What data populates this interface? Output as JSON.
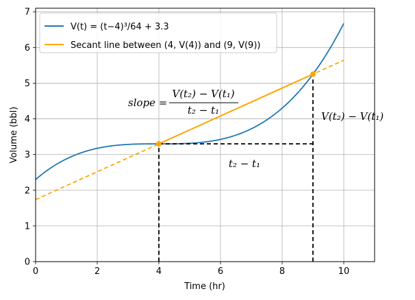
{
  "chart_data": {
    "type": "line",
    "xlabel": "Time (hr)",
    "ylabel": "Volume (bbl)",
    "xlim": [
      0,
      11
    ],
    "ylim": [
      0,
      7.1
    ],
    "xticks": [
      0,
      2,
      4,
      6,
      8,
      10
    ],
    "yticks": [
      0,
      1,
      2,
      3,
      4,
      5,
      6,
      7
    ],
    "grid": true,
    "legend_position": "top-left",
    "series": [
      {
        "name": "V(t) = (t−4)³/64 + 3.3",
        "color": "#1f77b4",
        "style": "solid",
        "x_range": [
          0,
          10
        ],
        "formula": "(t-4)^3/64 + 3.3"
      },
      {
        "name": "Secant line between (4, V(4)) and (9, V(9))",
        "color": "#ffa500",
        "style": "solid-between-points, dashed-extension",
        "x_range": [
          0,
          10
        ],
        "points": [
          [
            4,
            3.3
          ],
          [
            9,
            5.253
          ]
        ]
      }
    ],
    "annotations": {
      "slope_label": "slope =",
      "slope_numerator": "V(t₂) − V(t₁)",
      "slope_denominator": "t₂ − t₁",
      "rise_label": "V(t₂) − V(t₁)",
      "run_label": "t₂ − t₁"
    }
  }
}
